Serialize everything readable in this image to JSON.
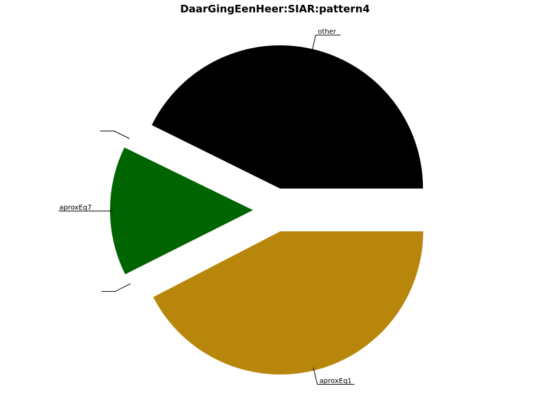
{
  "chart_data": {
    "type": "pie",
    "title": "DaarGingEenHeer:SIAR:pattern4",
    "slices": [
      {
        "label": "other",
        "value": 0.427,
        "color": "#000000",
        "exploded": true
      },
      {
        "label": "",
        "value": 0.001,
        "color": "#ffffff",
        "exploded": true
      },
      {
        "label": "aproxEq7",
        "value": 0.146,
        "color": "#006400",
        "exploded": true
      },
      {
        "label": "",
        "value": 0.002,
        "color": "#ffffff",
        "exploded": true
      },
      {
        "label": "aproxEq1",
        "value": 0.424,
        "color": "#b8860b",
        "exploded": true
      }
    ]
  }
}
